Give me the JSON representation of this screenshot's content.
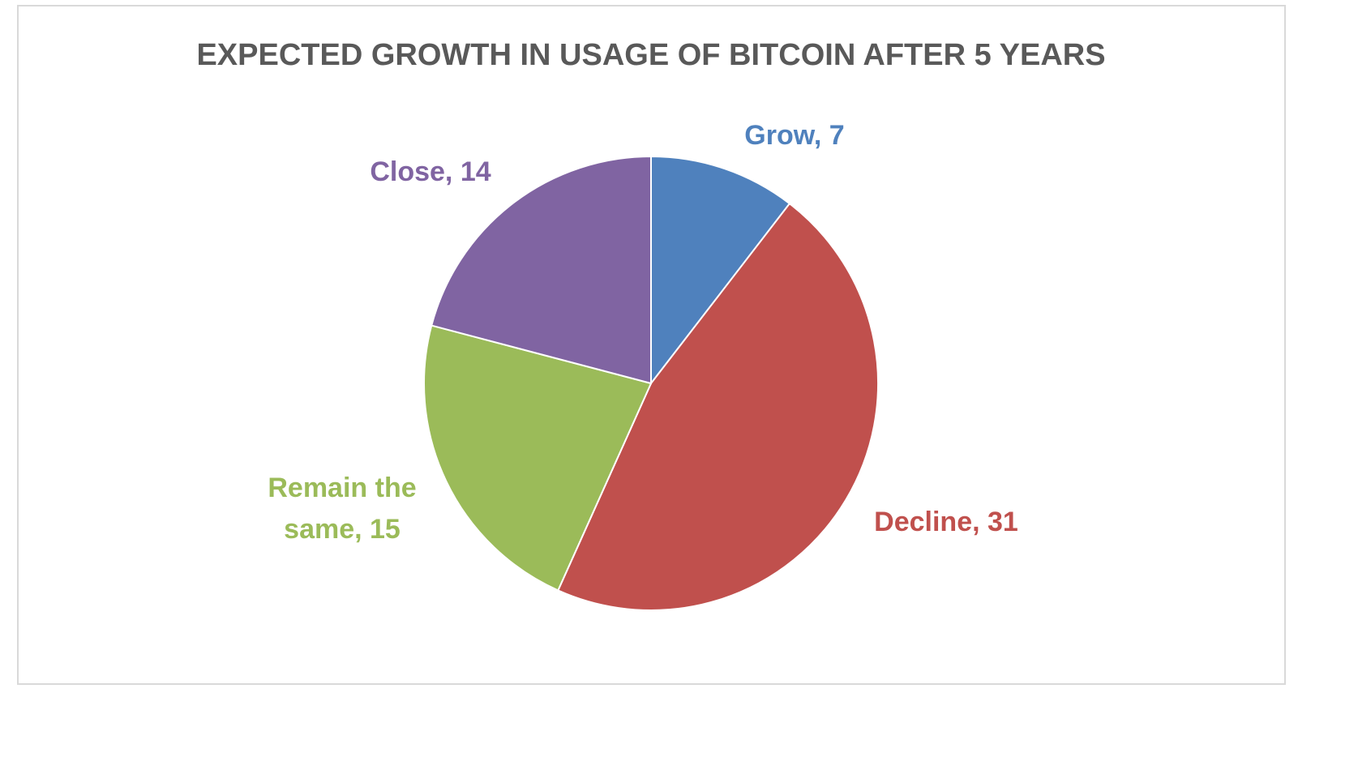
{
  "chart_data": {
    "type": "pie",
    "title": "EXPECTED GROWTH IN USAGE OF BITCOIN AFTER 5 YEARS",
    "start_angle_deg": 0,
    "direction": "clockwise",
    "legend": "none",
    "slices": [
      {
        "name": "Grow",
        "value": 7,
        "color": "#4F81BD",
        "label_lines": [
          "Grow, 7"
        ]
      },
      {
        "name": "Decline",
        "value": 31,
        "color": "#C0504D",
        "label_lines": [
          "Decline, 31"
        ]
      },
      {
        "name": "Remain the same",
        "value": 15,
        "color": "#9BBB59",
        "label_lines": [
          "Remain the",
          "same, 15"
        ]
      },
      {
        "name": "Close",
        "value": 14,
        "color": "#8064A2",
        "label_lines": [
          "Close, 14"
        ]
      }
    ]
  }
}
